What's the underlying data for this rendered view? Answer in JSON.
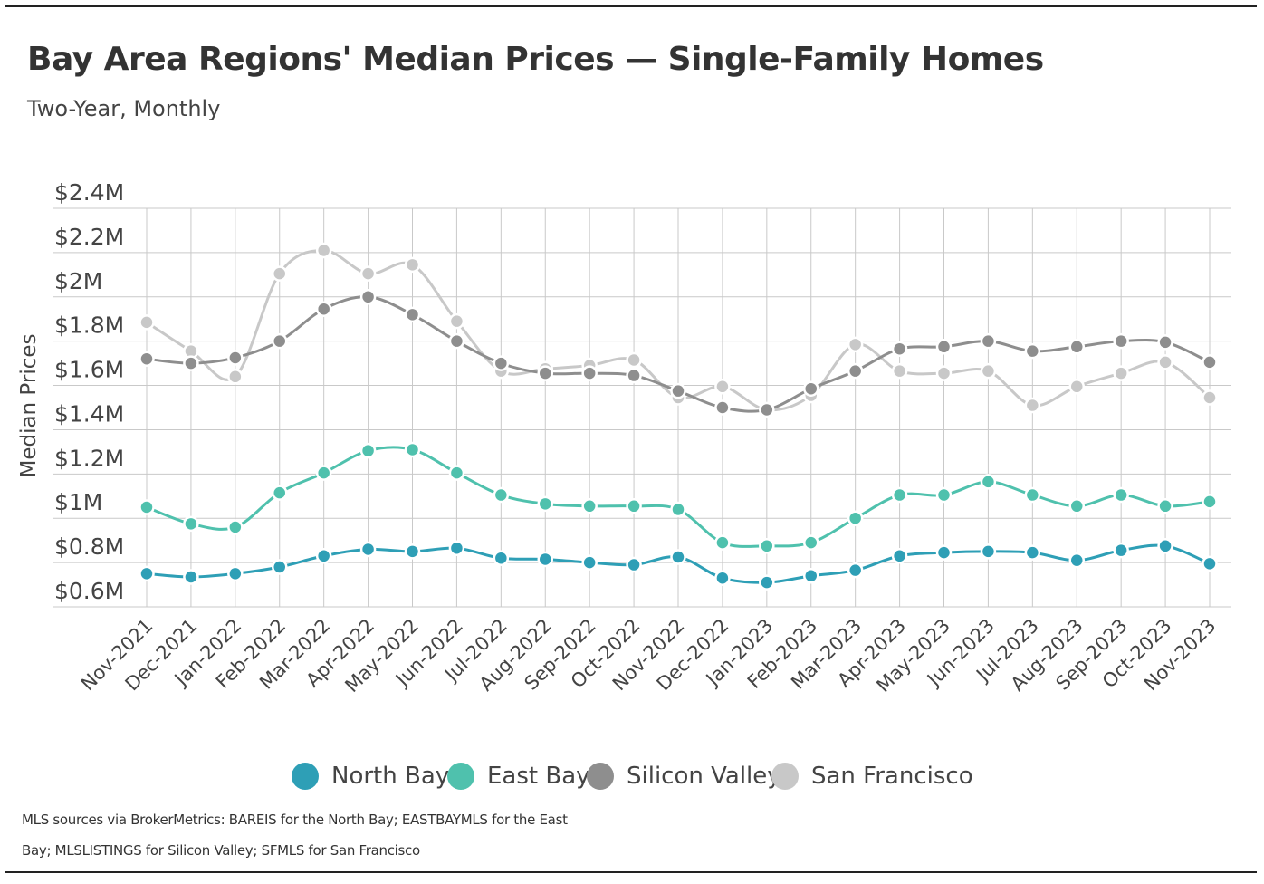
{
  "chart_data": {
    "type": "line",
    "title": "Bay Area Regions' Median Prices — Single-Family Homes",
    "subtitle": "Two-Year, Monthly",
    "ylabel": "Median Prices",
    "xlabel": "",
    "ylim": [
      0.6,
      2.4
    ],
    "yticks": [
      {
        "value": 0.6,
        "label": "$0.6M"
      },
      {
        "value": 0.8,
        "label": "$0.8M"
      },
      {
        "value": 1.0,
        "label": "$1M"
      },
      {
        "value": 1.2,
        "label": "$1.2M"
      },
      {
        "value": 1.4,
        "label": "$1.4M"
      },
      {
        "value": 1.6,
        "label": "$1.6M"
      },
      {
        "value": 1.8,
        "label": "$1.8M"
      },
      {
        "value": 2.0,
        "label": "$2M"
      },
      {
        "value": 2.2,
        "label": "$2.2M"
      },
      {
        "value": 2.4,
        "label": "$2.4M"
      }
    ],
    "grid": true,
    "legend_position": "bottom",
    "categories": [
      "Nov-2021",
      "Dec-2021",
      "Jan-2022",
      "Feb-2022",
      "Mar-2022",
      "Apr-2022",
      "May-2022",
      "Jun-2022",
      "Jul-2022",
      "Aug-2022",
      "Sep-2022",
      "Oct-2022",
      "Nov-2022",
      "Dec-2022",
      "Jan-2023",
      "Feb-2023",
      "Mar-2023",
      "Apr-2023",
      "May-2023",
      "Jun-2023",
      "Jul-2023",
      "Aug-2023",
      "Sep-2023",
      "Oct-2023",
      "Nov-2023"
    ],
    "series": [
      {
        "name": "North Bay",
        "color": "#2e9fb6",
        "values": [
          0.75,
          0.735,
          0.75,
          0.78,
          0.83,
          0.86,
          0.85,
          0.865,
          0.82,
          0.815,
          0.8,
          0.79,
          0.825,
          0.73,
          0.71,
          0.74,
          0.765,
          0.83,
          0.845,
          0.85,
          0.845,
          0.81,
          0.855,
          0.875,
          0.795
        ]
      },
      {
        "name": "East Bay",
        "color": "#4fc1ad",
        "values": [
          1.05,
          0.975,
          0.96,
          1.115,
          1.205,
          1.305,
          1.31,
          1.205,
          1.105,
          1.065,
          1.055,
          1.055,
          1.04,
          0.89,
          0.875,
          0.89,
          1.0,
          1.105,
          1.105,
          1.165,
          1.105,
          1.055,
          1.105,
          1.055,
          1.075
        ]
      },
      {
        "name": "Silicon Valley",
        "color": "#8e8e8e",
        "values": [
          1.72,
          1.7,
          1.725,
          1.8,
          1.945,
          2.0,
          1.92,
          1.8,
          1.7,
          1.655,
          1.655,
          1.645,
          1.575,
          1.5,
          1.49,
          1.585,
          1.665,
          1.765,
          1.775,
          1.8,
          1.755,
          1.775,
          1.8,
          1.795,
          1.705
        ]
      },
      {
        "name": "San Francisco",
        "color": "#c8c8c8",
        "values": [
          1.885,
          1.755,
          1.64,
          2.105,
          2.21,
          2.105,
          2.145,
          1.89,
          1.665,
          1.675,
          1.69,
          1.715,
          1.545,
          1.595,
          1.49,
          1.555,
          1.785,
          1.665,
          1.655,
          1.665,
          1.51,
          1.595,
          1.655,
          1.705,
          1.545
        ]
      }
    ]
  },
  "source_note": {
    "line1": "MLS sources via BrokerMetrics: BAREIS for the North Bay; EASTBAYMLS for the East",
    "line2": "Bay; MLSLISTINGS for Silicon Valley; SFMLS for San Francisco"
  }
}
